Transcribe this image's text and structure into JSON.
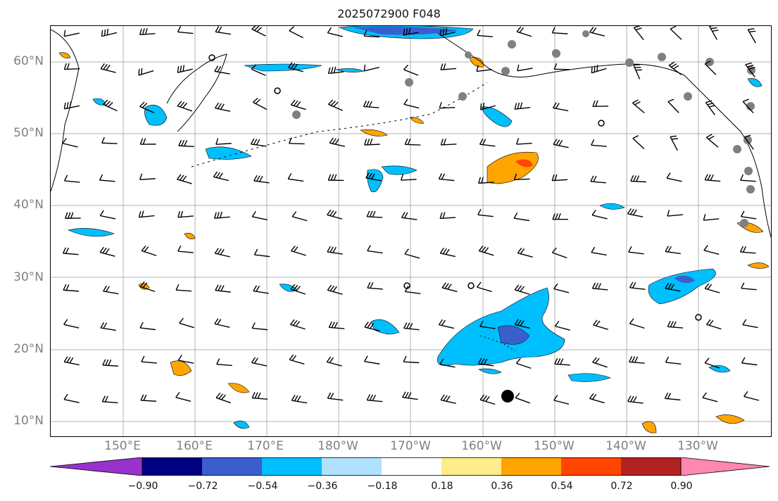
{
  "title": "2025072900 F048",
  "map": {
    "lat_labels": [
      "60°N",
      "50°N",
      "40°N",
      "30°N",
      "20°N",
      "10°N"
    ],
    "lon_labels": [
      "150°E",
      "160°E",
      "170°E",
      "180°W",
      "170°W",
      "160°W",
      "150°W",
      "140°W",
      "130°W"
    ],
    "grid": true,
    "coastline_color": "#000000",
    "gridline_color": "#b0b0b0",
    "station_marker_color": "#808080",
    "storm_marker": "filled-black-circle",
    "features": [
      "wind-barbs",
      "filled-contours",
      "coastlines",
      "station-dots"
    ]
  },
  "colorbar": {
    "ticks": [
      "−0.90",
      "−0.72",
      "−0.54",
      "−0.36",
      "−0.18",
      "0.18",
      "0.36",
      "0.54",
      "0.72",
      "0.90"
    ],
    "extend": "both",
    "colors": [
      "#9932cc",
      "#000080",
      "#3a5fcd",
      "#00bfff",
      "#b0e2ff",
      "#ffffff",
      "#ffec8b",
      "#ffa500",
      "#ff4500",
      "#b22222",
      "#ff88b0"
    ]
  }
}
